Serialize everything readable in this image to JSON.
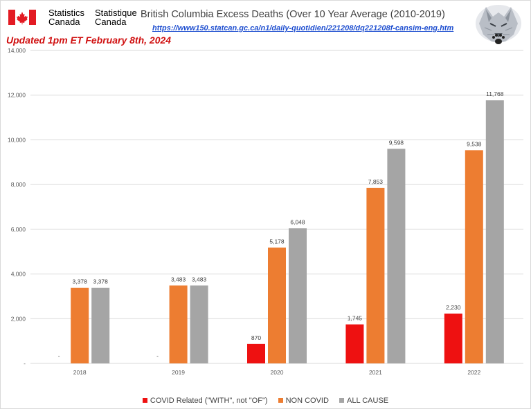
{
  "header": {
    "logo_text_en": "Statistics Canada",
    "logo_text_fr": "Statistique Canada",
    "source_url": "https://www150.statcan.gc.ca/n1/daily-quotidien/221208/dq221208f-cansim-eng.htm",
    "updated_note": "Updated 1pm ET February 8th, 2024"
  },
  "colors": {
    "covid": "#ee1111",
    "non_covid": "#ed7d31",
    "all_cause": "#a5a5a5",
    "updated_text": "#d01010",
    "flag_red": "#e31b23"
  },
  "icons": [
    "canada-flag-icon",
    "wolf-logo-icon"
  ],
  "chart_data": {
    "type": "bar",
    "title": "British Columbia Excess Deaths (Over 10 Year Average (2010-2019)",
    "categories": [
      "2018",
      "2019",
      "2020",
      "2021",
      "2022"
    ],
    "series": [
      {
        "name": "COVID Related (\"WITH\", not \"OF\")",
        "values": [
          0,
          0,
          870,
          1745,
          2230
        ],
        "labels": [
          "-",
          "-",
          "870",
          "1,745",
          "2,230"
        ]
      },
      {
        "name": "NON COVID",
        "values": [
          3378,
          3483,
          5178,
          7853,
          9538
        ],
        "labels": [
          "3,378",
          "3,483",
          "5,178",
          "7,853",
          "9,538"
        ]
      },
      {
        "name": "ALL CAUSE",
        "values": [
          3378,
          3483,
          6048,
          9598,
          11768
        ],
        "labels": [
          "3,378",
          "3,483",
          "6,048",
          "9,598",
          "11,768"
        ]
      }
    ],
    "ylim": [
      0,
      14000
    ],
    "yticks": [
      0,
      2000,
      4000,
      6000,
      8000,
      10000,
      12000,
      14000
    ],
    "ytick_labels": [
      "-",
      "2,000",
      "4,000",
      "6,000",
      "8,000",
      "10,000",
      "12,000",
      "14,000"
    ],
    "grid": true,
    "legend_position": "bottom"
  }
}
